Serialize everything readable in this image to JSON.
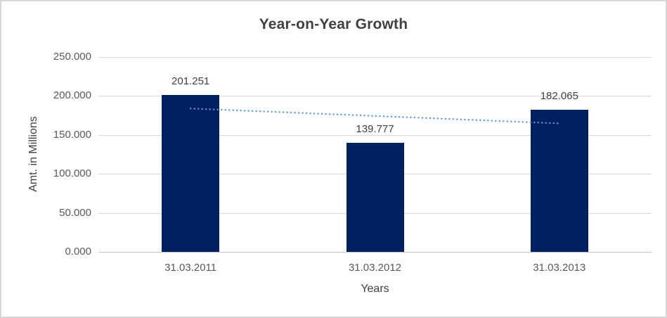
{
  "chart_data": {
    "type": "bar",
    "title": "Year-on-Year Growth",
    "xlabel": "Years",
    "ylabel": "Amt. in Millions",
    "categories": [
      "31.03.2011",
      "31.03.2012",
      "31.03.2013"
    ],
    "values": [
      201.251,
      139.777,
      182.065
    ],
    "data_labels": [
      "201.251",
      "139.777",
      "182.065"
    ],
    "ylim": [
      0,
      250
    ],
    "yticks": [
      0,
      50,
      100,
      150,
      200,
      250
    ],
    "ytick_labels": [
      "0.000",
      "50.000",
      "100.000",
      "150.000",
      "200.000",
      "250.000"
    ],
    "grid": true,
    "legend": "none",
    "trendline": {
      "type": "linear",
      "style": "dotted",
      "start_value": 183.96,
      "end_value": 164.77
    },
    "colors": {
      "bar": "#002060",
      "trendline": "#5b9bd5",
      "gridline": "#d9d9d9",
      "axis_line": "#c6c6c6",
      "tick_text": "#595959",
      "title_text": "#404040",
      "data_label_text": "#404040",
      "frame_border": "#d6d6d6",
      "background": "#ffffff"
    }
  }
}
